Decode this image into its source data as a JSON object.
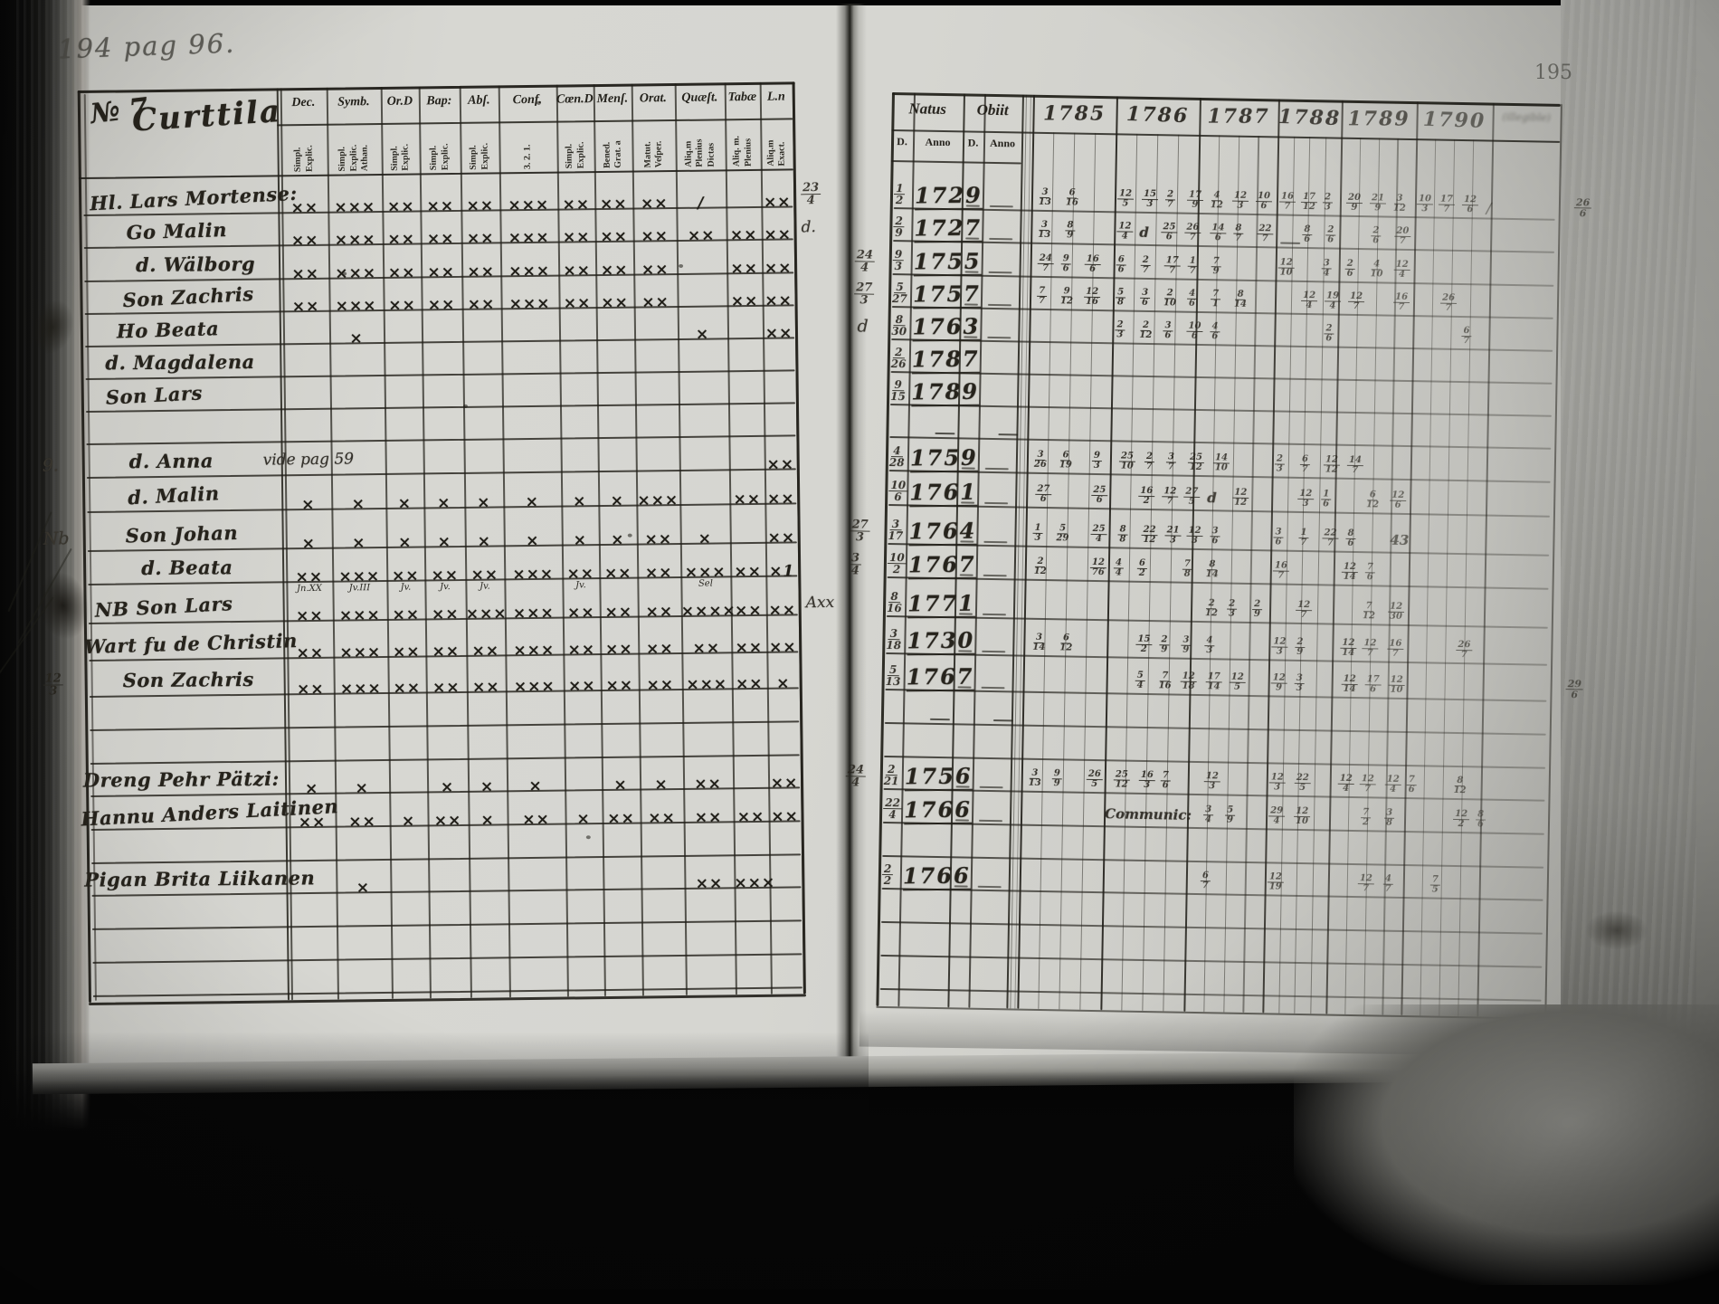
{
  "photo": {
    "handwritten_note": "194 pag 96.",
    "page_number": "195"
  },
  "left_page": {
    "title_no": "№ 7",
    "title_name": "Curttila",
    "columns": [
      {
        "label": "Dec.",
        "sub": [
          "Explic.",
          "Simpl."
        ]
      },
      {
        "label": "Symb.",
        "sub": [
          "Athan.",
          "Explic.",
          "Simpl."
        ]
      },
      {
        "label": "Or.D",
        "sub": [
          "Explic.",
          "Simpl."
        ]
      },
      {
        "label": "Bap:",
        "sub": [
          "Explic.",
          "Simpl."
        ]
      },
      {
        "label": "Abſ.",
        "sub": [
          "Explic.",
          "Simpl."
        ]
      },
      {
        "label": "Conf.",
        "sub": [
          "3. 2. 1."
        ]
      },
      {
        "label": "Cœn.D",
        "sub": [
          "Explic.",
          "Simpl."
        ]
      },
      {
        "label": "Menſ.",
        "sub": [
          "Grat. a",
          "Bened."
        ]
      },
      {
        "label": "Orat.",
        "sub": [
          "Veſper.",
          "Matut."
        ]
      },
      {
        "label": "Quæſt.",
        "sub": [
          "Dictas",
          "Plenius",
          "Aliq.m"
        ]
      },
      {
        "label": "Tabæ",
        "sub": [
          "Plenius",
          "Aliq. m."
        ]
      },
      {
        "label": "L.n",
        "sub": [
          "Exact.",
          "Aliq.m"
        ]
      }
    ],
    "rows": [
      {
        "name": "Hl. Lars Mortense:",
        "nx": 110,
        "marks": [
          "xx",
          "xxx",
          "xy",
          "xx",
          "xx",
          "xxx",
          "xy",
          "xx",
          "xx",
          "/",
          "",
          "xx"
        ],
        "mr": "23/4"
      },
      {
        "name": "Go Malin",
        "nx": 150,
        "marks": [
          "xx",
          "xxx",
          "xx",
          "xx",
          "xx",
          "xxx",
          "xx",
          "xx",
          "xx",
          "xy",
          "xx",
          "xx"
        ],
        "mr": "d."
      },
      {
        "name": "d. Wälborg",
        "nx": 160,
        "marks": [
          "xx",
          "xxx",
          "xx",
          "xx",
          "xx",
          "xxx",
          "xx",
          "xx",
          "xx",
          "",
          "xy",
          "xx"
        ]
      },
      {
        "name": "Son Zachris",
        "nx": 145,
        "marks": [
          "xx",
          "xxy",
          "xx",
          "xx",
          "xx",
          "xxx",
          "xx",
          "xx",
          "xx",
          "",
          "xy",
          "xx"
        ]
      },
      {
        "name": "Ho Beata",
        "nx": 138,
        "marks": [
          "",
          "x",
          "",
          "",
          "",
          "",
          "",
          "",
          "",
          "x",
          "",
          "xx"
        ]
      },
      {
        "name": "d. Magdalena",
        "nx": 125,
        "marks": []
      },
      {
        "name": "Son Lars",
        "nx": 125,
        "marks": []
      },
      {},
      {
        "name": "d. Anna",
        "nx": 150,
        "note": "vide pag 59",
        "marks": [
          "",
          "",
          "",
          "",
          "",
          "",
          "",
          "",
          "",
          "",
          "",
          "xx"
        ],
        "ml": "9."
      },
      {
        "name": "d. Malin",
        "nx": 148,
        "marks": [
          "x",
          "x",
          "x",
          "x",
          "x",
          "x",
          "x",
          "x",
          "xxx",
          "",
          "xx",
          "xx"
        ]
      },
      {
        "name": "Son Johan",
        "nx": 145,
        "marks": [
          "x",
          "x",
          "x",
          "x",
          "x",
          "x",
          "x",
          "x",
          "xy",
          "y",
          "",
          "xx"
        ],
        "ml": "Nb"
      },
      {
        "name": "d. Beata",
        "nx": 162,
        "marks": [
          "xx",
          "xxx",
          "xx",
          "xx",
          "xx",
          "xxx",
          "xx",
          "xx",
          "xx",
          "xxx",
          "xx",
          "x1"
        ],
        "sub": [
          "Jn.XX",
          "Jv.III",
          "Jv.",
          "Jv.",
          "Jv.",
          "",
          "Jv.",
          "",
          "",
          "Sel",
          "",
          ""
        ]
      },
      {
        "name": "NB Son Lars",
        "nx": 110,
        "marks": [
          "xx",
          "xxx",
          "xx",
          "xx",
          "xxx",
          "xyy",
          "xx",
          "xx",
          "xx",
          "yyyy",
          "xx",
          "xx"
        ],
        "mr": "Axx"
      },
      {
        "name": "Wart fu de Christin",
        "nx": 98,
        "marks": [
          "xx",
          "xxx",
          "xx",
          "xy",
          "yy",
          "xxx",
          "xy",
          "xx",
          "xy",
          "xx",
          "xy",
          "xx"
        ]
      },
      {
        "name": "Son Zachris",
        "nx": 140,
        "marks": [
          "xx",
          "xxx",
          "xx",
          "xx",
          "xx",
          "xxx",
          "xx",
          "xx",
          "xx",
          "xxx",
          "xx",
          "x"
        ],
        "ml": "12/3"
      },
      {},
      {},
      {
        "name": "Dreng Pehr Pätzi:",
        "nx": 95,
        "marks": [
          "x",
          "x",
          "",
          "x",
          "x",
          "x",
          "",
          "x",
          "x",
          "xy",
          "",
          "xx"
        ]
      },
      {
        "name": "Hannu Anders Laitinen",
        "nx": 92,
        "marks": [
          "xx",
          "xy",
          "x",
          "xx",
          "x",
          "xx",
          "x",
          "xx",
          "xx",
          "xy",
          "xy",
          "xy"
        ]
      },
      {},
      {
        "name": "Pigan Brita Liikanen",
        "nx": 95,
        "marks": [
          "",
          "x",
          "",
          "",
          "",
          "",
          "",
          "",
          "",
          "xx",
          "xxx",
          ""
        ]
      },
      {},
      {},
      {}
    ]
  },
  "right_page": {
    "natus": "Natus",
    "obiit": "Obiit",
    "d": "D.",
    "anno": "Anno",
    "years": [
      "1785",
      "1786",
      "1787",
      "1788",
      "1789",
      "1790"
    ],
    "extra_col": "(illegible)",
    "rows": [
      {
        "nd": "1/2",
        "na": "1729",
        "ob": true,
        "mr": "26/6",
        "e": [
          [
            1150,
            "3/13"
          ],
          [
            1180,
            "6/16"
          ],
          [
            1237,
            "12/5"
          ],
          [
            1264,
            "15/3"
          ],
          [
            1290,
            "2/7"
          ],
          [
            1314,
            "17/9"
          ],
          [
            1340,
            "4/12"
          ],
          [
            1364,
            "12/3"
          ],
          [
            1390,
            "10/6"
          ],
          [
            1416,
            "16/7"
          ],
          [
            1440,
            "17/12"
          ],
          [
            1464,
            "2/3"
          ],
          [
            1490,
            "20/9"
          ],
          [
            1516,
            "21/9"
          ],
          [
            1542,
            "3/12"
          ],
          [
            1568,
            "10/3"
          ],
          [
            1592,
            "17/7"
          ],
          [
            1618,
            "12/6"
          ],
          [
            1645,
            "/"
          ]
        ]
      },
      {
        "nd": "2/9",
        "na": "1727",
        "ob": true,
        "e": [
          [
            1150,
            "3/13"
          ],
          [
            1180,
            "8/9"
          ],
          [
            1237,
            "12/4"
          ],
          [
            1262,
            "d"
          ],
          [
            1286,
            "25/6"
          ],
          [
            1312,
            "26/7"
          ],
          [
            1340,
            "14/6"
          ],
          [
            1366,
            "8/7"
          ],
          [
            1392,
            "22/7"
          ],
          [
            1418,
            "—"
          ],
          [
            1442,
            "8/6"
          ],
          [
            1468,
            "2/6"
          ],
          [
            1518,
            "2/6"
          ],
          [
            1544,
            "20/7"
          ]
        ]
      },
      {
        "nd": "9/3",
        "na": "1755",
        "ob": true,
        "ml": "24/4",
        "e": [
          [
            1150,
            "24/7"
          ],
          [
            1176,
            "9/6"
          ],
          [
            1202,
            "16/6"
          ],
          [
            1237,
            "6/6"
          ],
          [
            1264,
            "2/7"
          ],
          [
            1290,
            "17/7"
          ],
          [
            1316,
            "1/7"
          ],
          [
            1342,
            "7/9"
          ],
          [
            1416,
            "12/10"
          ],
          [
            1464,
            "3/4"
          ],
          [
            1490,
            "2/6"
          ],
          [
            1518,
            "4/10"
          ],
          [
            1544,
            "12/4"
          ]
        ]
      },
      {
        "nd": "5/27",
        "na": "1757",
        "ob": true,
        "ml": "27/3",
        "e": [
          [
            1150,
            "7/7"
          ],
          [
            1176,
            "9/12"
          ],
          [
            1202,
            "12/16"
          ],
          [
            1237,
            "5/8"
          ],
          [
            1264,
            "3/6"
          ],
          [
            1290,
            "2/10"
          ],
          [
            1316,
            "4/6"
          ],
          [
            1342,
            "7/1"
          ],
          [
            1368,
            "8/14"
          ],
          [
            1442,
            "12/4"
          ],
          [
            1468,
            "19/4"
          ],
          [
            1494,
            "12/7"
          ],
          [
            1544,
            "16/7"
          ],
          [
            1596,
            "26/7"
          ]
        ]
      },
      {
        "nd": "8/30",
        "na": "1763",
        "ob": true,
        "ml": "d",
        "e": [
          [
            1237,
            "2/3"
          ],
          [
            1264,
            "2/12"
          ],
          [
            1290,
            "3/6"
          ],
          [
            1316,
            "10/6"
          ],
          [
            1342,
            "4/6"
          ],
          [
            1468,
            "2/6"
          ],
          [
            1620,
            "6/7"
          ]
        ]
      },
      {
        "nd": "2/26",
        "na": "1787",
        "e": []
      },
      {
        "nd": "9/15",
        "na": "1789",
        "e": []
      },
      {
        "e": [
          [
            1040,
            "—"
          ],
          [
            1110,
            "—"
          ]
        ]
      },
      {
        "nd": "4/28",
        "na": "1759",
        "ob": true,
        "e": [
          [
            1150,
            "3/26"
          ],
          [
            1178,
            "6/19"
          ],
          [
            1214,
            "9/3"
          ],
          [
            1244,
            "25/10"
          ],
          [
            1272,
            "2/7"
          ],
          [
            1296,
            "3/7"
          ],
          [
            1320,
            "25/12"
          ],
          [
            1348,
            "14/10"
          ],
          [
            1416,
            "2/3"
          ],
          [
            1444,
            "6/7"
          ],
          [
            1470,
            "12/12"
          ],
          [
            1496,
            "14/7"
          ]
        ]
      },
      {
        "nd": "10/6",
        "na": "1761",
        "ob": true,
        "e": [
          [
            1152,
            "27/6"
          ],
          [
            1214,
            "25/6"
          ],
          [
            1266,
            "16/2"
          ],
          [
            1292,
            "12/7"
          ],
          [
            1316,
            "27/5"
          ],
          [
            1342,
            "d"
          ],
          [
            1370,
            "12/12"
          ],
          [
            1442,
            "12/3"
          ],
          [
            1468,
            "1/6"
          ],
          [
            1518,
            "6/12"
          ],
          [
            1544,
            "12/6"
          ]
        ]
      },
      {
        "nd": "3/17",
        "na": "1764",
        "ob": true,
        "ml": "27/3",
        "e": [
          [
            1150,
            "1/3"
          ],
          [
            1176,
            "5/29"
          ],
          [
            1214,
            "25/4"
          ],
          [
            1244,
            "8/8"
          ],
          [
            1270,
            "22/12"
          ],
          [
            1296,
            "21/3"
          ],
          [
            1320,
            "12/3"
          ],
          [
            1346,
            "3/6"
          ],
          [
            1416,
            "3/6"
          ],
          [
            1444,
            "1/7"
          ],
          [
            1470,
            "22/7"
          ],
          [
            1496,
            "8/6"
          ],
          [
            1545,
            "43"
          ]
        ]
      },
      {
        "nd": "10/2",
        "na": "1767",
        "ob": true,
        "ml": "3/4",
        "e": [
          [
            1152,
            "2/12"
          ],
          [
            1214,
            "12/76"
          ],
          [
            1240,
            "4/4"
          ],
          [
            1266,
            "6/2"
          ],
          [
            1316,
            "7/8"
          ],
          [
            1342,
            "8/14"
          ],
          [
            1416,
            "16/7"
          ],
          [
            1492,
            "12/14"
          ],
          [
            1518,
            "7/6"
          ]
        ]
      },
      {
        "nd": "8/16",
        "na": "1771",
        "ob": true,
        "e": [
          [
            1342,
            "2/12"
          ],
          [
            1366,
            "2/3"
          ],
          [
            1394,
            "2/9"
          ],
          [
            1442,
            "12/7"
          ],
          [
            1516,
            "7/12"
          ],
          [
            1544,
            "12/30"
          ]
        ]
      },
      {
        "nd": "3/18",
        "na": "1730",
        "ob": true,
        "e": [
          [
            1152,
            "3/14"
          ],
          [
            1182,
            "6/12"
          ],
          [
            1266,
            "15/2"
          ],
          [
            1292,
            "2/9"
          ],
          [
            1316,
            "3/9"
          ],
          [
            1342,
            "4/3"
          ],
          [
            1416,
            "12/3"
          ],
          [
            1442,
            "2/9"
          ],
          [
            1492,
            "12/14"
          ],
          [
            1516,
            "12/7"
          ],
          [
            1544,
            "16/7"
          ],
          [
            1620,
            "26/7"
          ]
        ]
      },
      {
        "nd": "5/13",
        "na": "1767",
        "ob": true,
        "mr": "29/6",
        "e": [
          [
            1266,
            "5/4"
          ],
          [
            1292,
            "7/16"
          ],
          [
            1316,
            "12/18"
          ],
          [
            1344,
            "17/14"
          ],
          [
            1370,
            "12/5"
          ],
          [
            1416,
            "12/9"
          ],
          [
            1442,
            "3/3"
          ],
          [
            1494,
            "12/14"
          ],
          [
            1520,
            "17/6"
          ],
          [
            1546,
            "12/10"
          ]
        ]
      },
      {
        "e": [
          [
            1040,
            "—"
          ],
          [
            1110,
            "—"
          ]
        ]
      },
      {
        "e": []
      },
      {
        "nd": "2/21",
        "na": "1756",
        "ob": true,
        "ml": "24/4",
        "e": [
          [
            1150,
            "3/13"
          ],
          [
            1176,
            "9/9"
          ],
          [
            1214,
            "26/5"
          ],
          [
            1244,
            "25/12"
          ],
          [
            1272,
            "16/3"
          ],
          [
            1296,
            "7/6"
          ],
          [
            1344,
            "12/3"
          ],
          [
            1416,
            "12/3"
          ],
          [
            1444,
            "22/5"
          ],
          [
            1492,
            "12/4"
          ],
          [
            1516,
            "12/7"
          ],
          [
            1544,
            "12/4"
          ],
          [
            1568,
            "7/6"
          ],
          [
            1620,
            "8/12"
          ]
        ]
      },
      {
        "nd": "22/4",
        "na": "1766",
        "ob": true,
        "e": [
          [
            1235,
            "Communic:"
          ],
          [
            1344,
            "3/4"
          ],
          [
            1368,
            "5/9"
          ],
          [
            1416,
            "29/4"
          ],
          [
            1444,
            "12/10"
          ],
          [
            1518,
            "7/2"
          ],
          [
            1544,
            "3/8"
          ],
          [
            1620,
            "12/2"
          ],
          [
            1645,
            "8/6"
          ]
        ]
      },
      {
        "e": []
      },
      {
        "nd": "2/2",
        "na": "1766",
        "ob": true,
        "e": [
          [
            1342,
            "6/7"
          ],
          [
            1416,
            "12/19"
          ],
          [
            1516,
            "12/7"
          ],
          [
            1544,
            "4/7"
          ],
          [
            1596,
            "7/5"
          ]
        ]
      },
      {
        "e": []
      },
      {
        "e": []
      },
      {
        "e": []
      }
    ]
  }
}
